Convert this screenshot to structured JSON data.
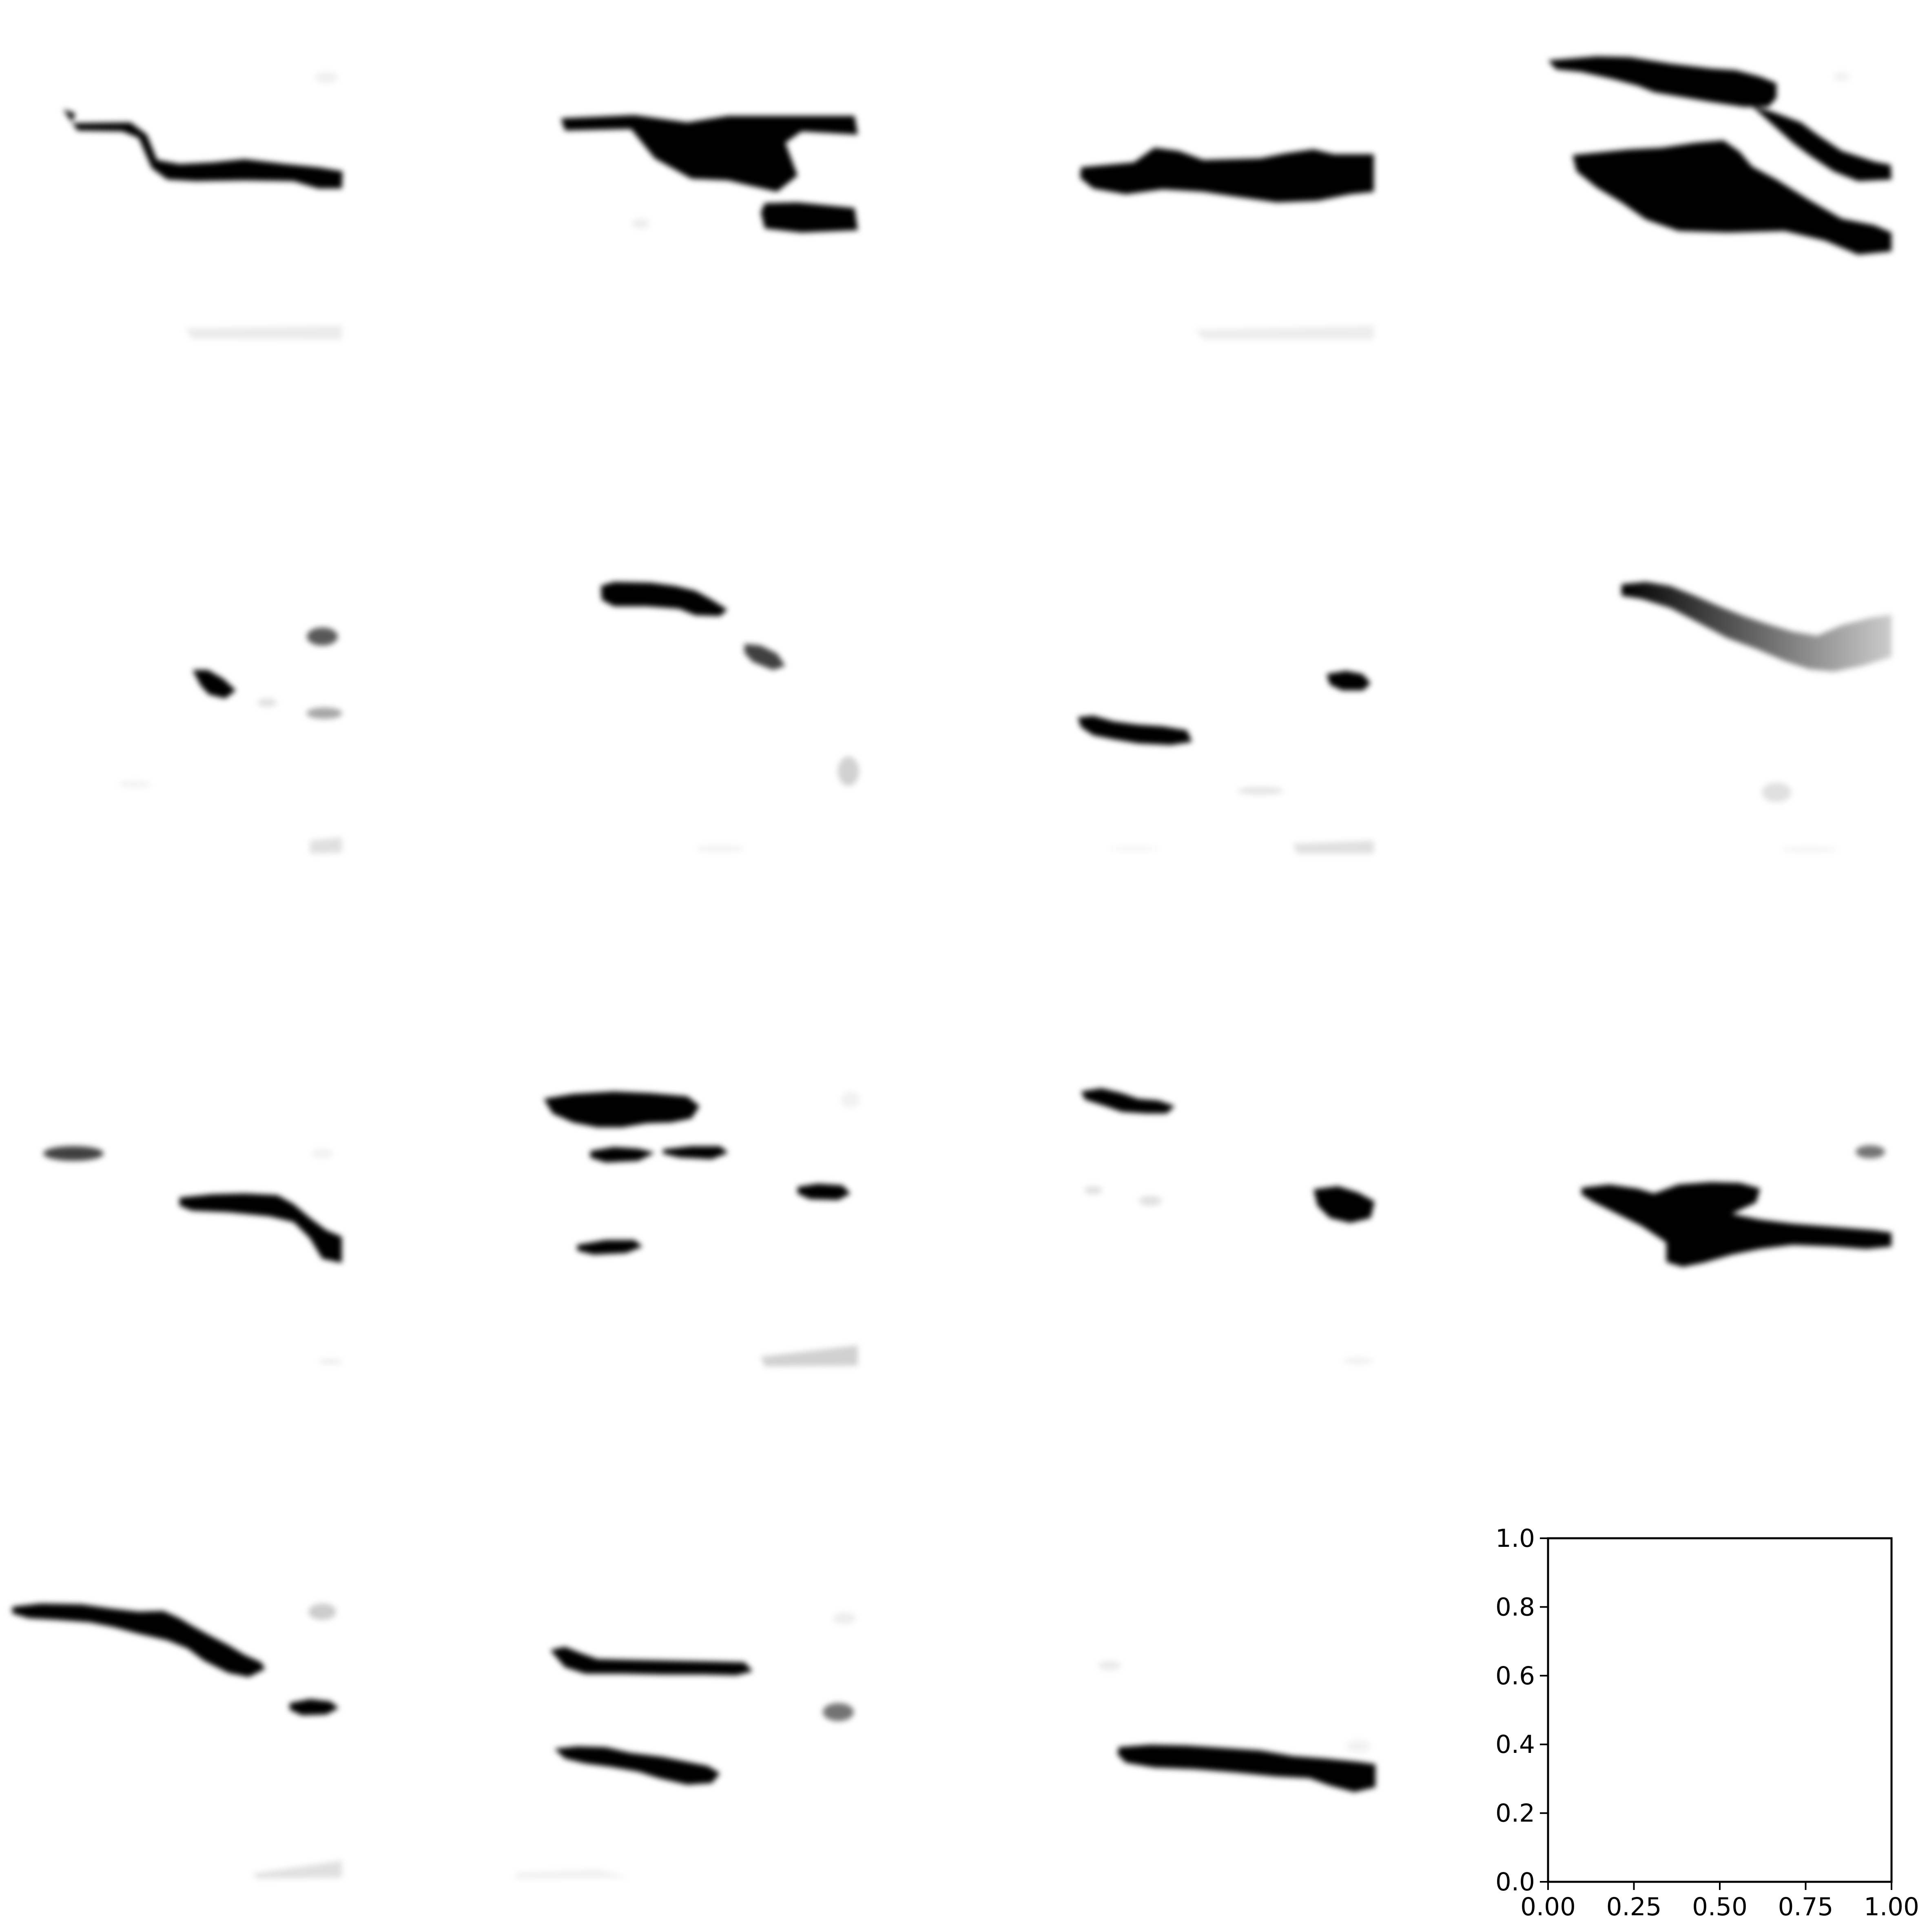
{
  "figure": {
    "grid": "4x4",
    "background": "#ffffff",
    "image_colormap": "gray_r"
  },
  "chart_data": {
    "type": "heatmap",
    "description_panels": [
      {
        "panel": 1,
        "kind": "image",
        "show_axes": false
      },
      {
        "panel": 2,
        "kind": "image",
        "show_axes": false
      },
      {
        "panel": 3,
        "kind": "image",
        "show_axes": false
      },
      {
        "panel": 4,
        "kind": "image",
        "show_axes": false
      },
      {
        "panel": 5,
        "kind": "image",
        "show_axes": false
      },
      {
        "panel": 6,
        "kind": "image",
        "show_axes": false
      },
      {
        "panel": 7,
        "kind": "image",
        "show_axes": false
      },
      {
        "panel": 8,
        "kind": "image",
        "show_axes": false
      },
      {
        "panel": 9,
        "kind": "image",
        "show_axes": false
      },
      {
        "panel": 10,
        "kind": "image",
        "show_axes": false
      },
      {
        "panel": 11,
        "kind": "image",
        "show_axes": false
      },
      {
        "panel": 12,
        "kind": "image",
        "show_axes": false
      },
      {
        "panel": 13,
        "kind": "image",
        "show_axes": false
      },
      {
        "panel": 14,
        "kind": "image",
        "show_axes": false
      },
      {
        "panel": 15,
        "kind": "image",
        "show_axes": false
      },
      {
        "panel": 16,
        "kind": "empty-axes",
        "show_axes": true
      }
    ],
    "empty_axes": {
      "xlim": [
        0,
        1
      ],
      "ylim": [
        0,
        1
      ],
      "xticks": [
        0.0,
        0.25,
        0.5,
        0.75,
        1.0
      ],
      "yticks": [
        0.0,
        0.2,
        0.4,
        0.6,
        0.8,
        1.0
      ],
      "xtick_labels": [
        "0.00",
        "0.25",
        "0.50",
        "0.75",
        "1.00"
      ],
      "ytick_labels": [
        "0.0",
        "0.2",
        "0.4",
        "0.6",
        "0.8",
        "1.0"
      ],
      "grid": false
    }
  }
}
